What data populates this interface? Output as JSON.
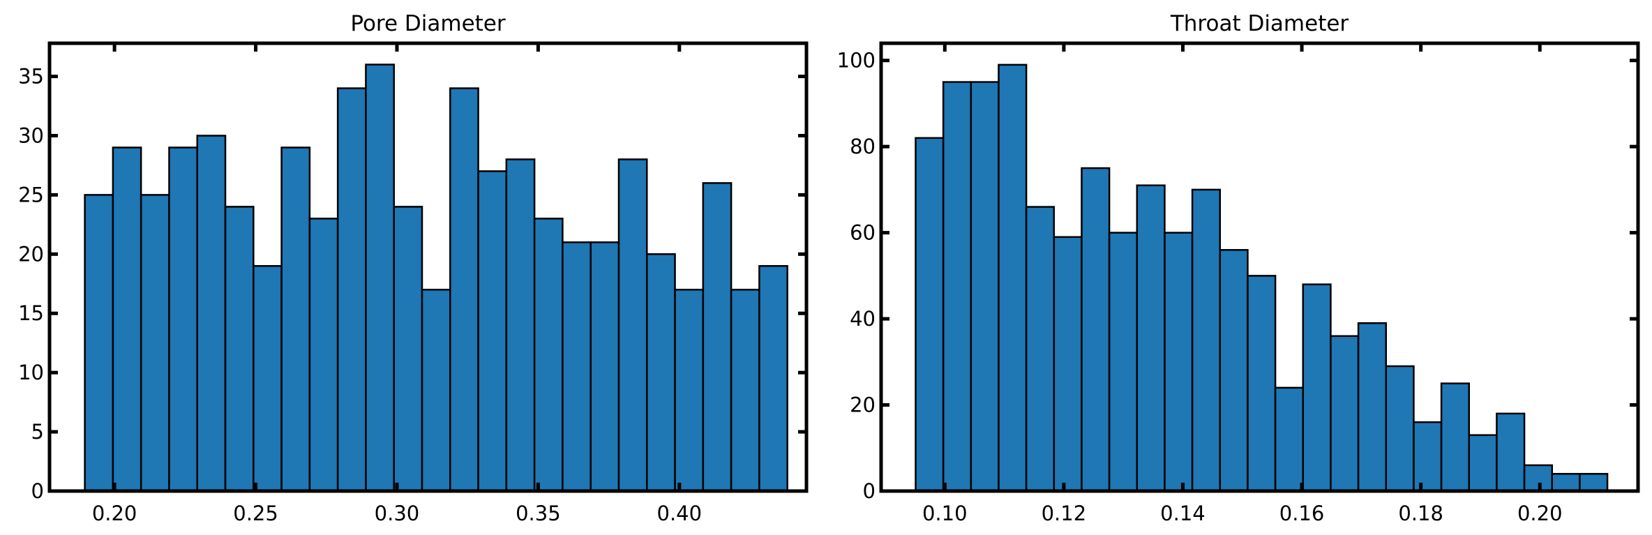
{
  "colors": {
    "bar_fill": "#1f77b4",
    "bar_edge": "#000000",
    "axis": "#000000",
    "background": "#ffffff"
  },
  "chart_data": [
    {
      "type": "bar",
      "histogram": true,
      "title": "Pore Diameter",
      "xlabel": "",
      "ylabel": "",
      "bin_start": 0.1895,
      "bin_width": 0.00995,
      "values": [
        25,
        29,
        25,
        29,
        30,
        24,
        19,
        29,
        23,
        34,
        36,
        24,
        17,
        34,
        27,
        28,
        23,
        21,
        21,
        28,
        20,
        17,
        26,
        17,
        19
      ],
      "xlim": [
        0.177,
        0.445
      ],
      "ylim": [
        0,
        37.8
      ],
      "xticks": [
        0.2,
        0.25,
        0.3,
        0.35,
        0.4
      ],
      "xtick_labels": [
        "0.20",
        "0.25",
        "0.30",
        "0.35",
        "0.40"
      ],
      "yticks": [
        0,
        5,
        10,
        15,
        20,
        25,
        30,
        35
      ],
      "ytick_labels": [
        "0",
        "5",
        "10",
        "15",
        "20",
        "25",
        "30",
        "35"
      ],
      "grid": false,
      "legend": "none"
    },
    {
      "type": "bar",
      "histogram": true,
      "title": "Throat Diameter",
      "xlabel": "",
      "ylabel": "",
      "bin_start": 0.0951,
      "bin_width": 0.00465,
      "values": [
        82,
        95,
        95,
        99,
        66,
        59,
        75,
        60,
        71,
        60,
        70,
        56,
        50,
        24,
        48,
        36,
        39,
        29,
        16,
        25,
        13,
        18,
        6,
        4,
        4
      ],
      "xlim": [
        0.0893,
        0.2165
      ],
      "ylim": [
        0,
        104
      ],
      "xticks": [
        0.1,
        0.12,
        0.14,
        0.16,
        0.18,
        0.2
      ],
      "xtick_labels": [
        "0.10",
        "0.12",
        "0.14",
        "0.16",
        "0.18",
        "0.20"
      ],
      "yticks": [
        0,
        20,
        40,
        60,
        80,
        100
      ],
      "ytick_labels": [
        "0",
        "20",
        "40",
        "60",
        "80",
        "100"
      ],
      "grid": false,
      "legend": "none"
    }
  ]
}
